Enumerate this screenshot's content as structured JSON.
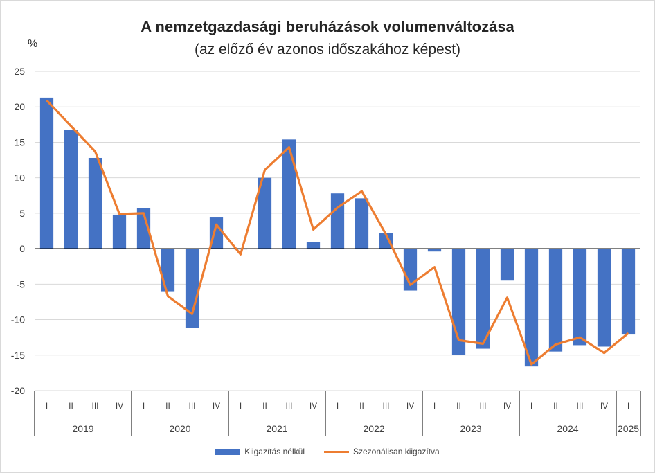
{
  "chart_data": {
    "type": "bar",
    "title": "A nemzetgazdasági beruházások volumenváltozása",
    "subtitle": "(az előző év azonos időszakához képest)",
    "ylabel": "%",
    "ylim": [
      -20,
      25
    ],
    "yticks": [
      -20,
      -15,
      -10,
      -5,
      0,
      5,
      10,
      15,
      20,
      25
    ],
    "grid": true,
    "legend_position": "bottom",
    "quarters": [
      "I",
      "II",
      "III",
      "IV",
      "I",
      "II",
      "III",
      "IV",
      "I",
      "II",
      "III",
      "IV",
      "I",
      "II",
      "III",
      "IV",
      "I",
      "II",
      "III",
      "IV",
      "I",
      "II",
      "III",
      "IV",
      "I"
    ],
    "years": [
      {
        "label": "2019",
        "count": 4
      },
      {
        "label": "2020",
        "count": 4
      },
      {
        "label": "2021",
        "count": 4
      },
      {
        "label": "2022",
        "count": 4
      },
      {
        "label": "2023",
        "count": 4
      },
      {
        "label": "2024",
        "count": 4
      },
      {
        "label": "2025",
        "count": 1
      }
    ],
    "series": [
      {
        "name": "Kiigazítás nélkül",
        "type": "bar",
        "color": "#4472c4",
        "values": [
          21.3,
          16.8,
          12.8,
          4.8,
          5.7,
          -6.0,
          -11.2,
          4.4,
          -0.1,
          10.0,
          15.4,
          0.9,
          7.8,
          7.1,
          2.2,
          -5.9,
          -0.4,
          -15.0,
          -14.1,
          -4.5,
          -16.6,
          -14.5,
          -13.6,
          -13.8,
          -12.1
        ]
      },
      {
        "name": "Szezonálisan kiigazítva",
        "type": "line",
        "color": "#ed7d31",
        "values": [
          20.9,
          17.3,
          13.7,
          4.9,
          5.0,
          -6.7,
          -9.2,
          3.4,
          -0.8,
          11.1,
          14.3,
          2.7,
          5.8,
          8.1,
          2.0,
          -5.1,
          -2.6,
          -12.9,
          -13.4,
          -6.9,
          -16.3,
          -13.5,
          -12.5,
          -14.7,
          -11.9
        ]
      }
    ]
  }
}
